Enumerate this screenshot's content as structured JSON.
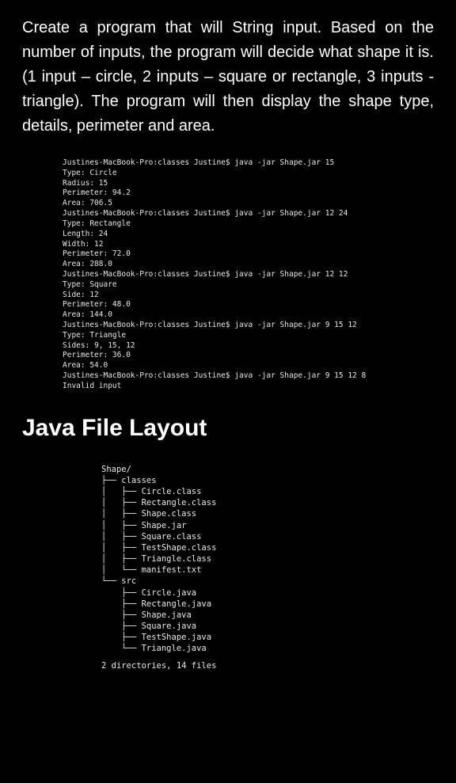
{
  "intro": "Create a program that will String input. Based on the number of inputs, the program will decide what shape it is. (1 input – circle, 2 inputs – square or rectangle, 3 inputs - triangle). The program will then display the shape type, details, perimeter and area.",
  "terminal": [
    "Justines-MacBook-Pro:classes Justine$ java -jar Shape.jar 15",
    "Type: Circle",
    "Radius: 15",
    "Perimeter: 94.2",
    "Area: 706.5",
    "Justines-MacBook-Pro:classes Justine$ java -jar Shape.jar 12 24",
    "Type: Rectangle",
    "Length: 24",
    "Width: 12",
    "Perimeter: 72.0",
    "Area: 288.0",
    "Justines-MacBook-Pro:classes Justine$ java -jar Shape.jar 12 12",
    "Type: Square",
    "Side: 12",
    "Perimeter: 48.0",
    "Area: 144.0",
    "Justines-MacBook-Pro:classes Justine$ java -jar Shape.jar 9 15 12",
    "Type: Triangle",
    "Sides: 9, 15, 12",
    "Perimeter: 36.0",
    "Area: 54.0",
    "Justines-MacBook-Pro:classes Justine$ java -jar Shape.jar 9 15 12 8",
    "Invalid input"
  ],
  "sectionTitle": "Java File Layout",
  "tree": [
    "Shape/",
    "├── classes",
    "│   ├── Circle.class",
    "│   ├── Rectangle.class",
    "│   ├── Shape.class",
    "│   ├── Shape.jar",
    "│   ├── Square.class",
    "│   ├── TestShape.class",
    "│   ├── Triangle.class",
    "│   └── manifest.txt",
    "└── src",
    "    ├── Circle.java",
    "    ├── Rectangle.java",
    "    ├── Shape.java",
    "    ├── Square.java",
    "    ├── TestShape.java",
    "    └── Triangle.java"
  ],
  "treeSummary": "2 directories, 14 files"
}
